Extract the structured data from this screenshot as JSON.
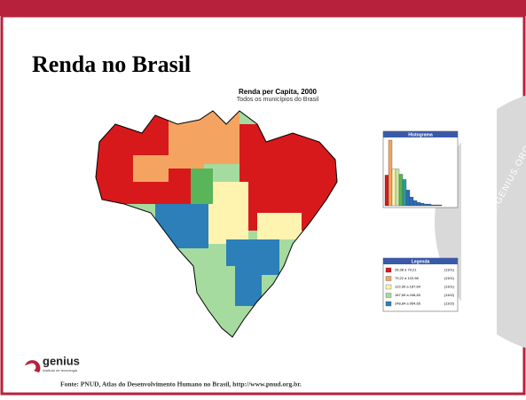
{
  "header": {
    "title": "Renda no Brasil"
  },
  "map": {
    "title": "Renda per Capita, 2000",
    "subtitle": "Todos os municípios do Brasil"
  },
  "histogram": {
    "title": "Histograma",
    "values": [
      35,
      75,
      42,
      42,
      36,
      30,
      18,
      10,
      6,
      4,
      3,
      2,
      2,
      1,
      1,
      1
    ],
    "colors": [
      "#d7191c",
      "#f4a460",
      "#fff3b0",
      "#c7e9a0",
      "#5ab45a",
      "#2b9d9d",
      "#2c6fbb",
      "#2c6fbb",
      "#2c6fbb",
      "#2c6fbb",
      "#2c6fbb",
      "#2c6fbb",
      "#2c6fbb",
      "#2c6fbb",
      "#2c6fbb",
      "#2c6fbb"
    ]
  },
  "legend": {
    "title": "Legenda",
    "items": [
      {
        "label": "28,38 a 79,21",
        "count": "(1101)",
        "color": "#d7191c"
      },
      {
        "label": "79,22 a 122,98",
        "count": "(1101)",
        "color": "#f4a460"
      },
      {
        "label": "122,99 a 187,64",
        "count": "(1101)",
        "color": "#fff3b0"
      },
      {
        "label": "187,65 a 248,83",
        "count": "(1102)",
        "color": "#a6dba0"
      },
      {
        "label": "248,84 a 954,65",
        "count": "(1102)",
        "color": "#2c7fb8"
      }
    ]
  },
  "logo": {
    "name": "genius",
    "tagline": "Instituto de tecnologia"
  },
  "footer": {
    "source": "Fonte: PNUD, Atlas do Desenvolvimento Humano no Brasil, http://www.pnud.org.br."
  },
  "watermark": "WWW.GENIUS.ORG.BR"
}
